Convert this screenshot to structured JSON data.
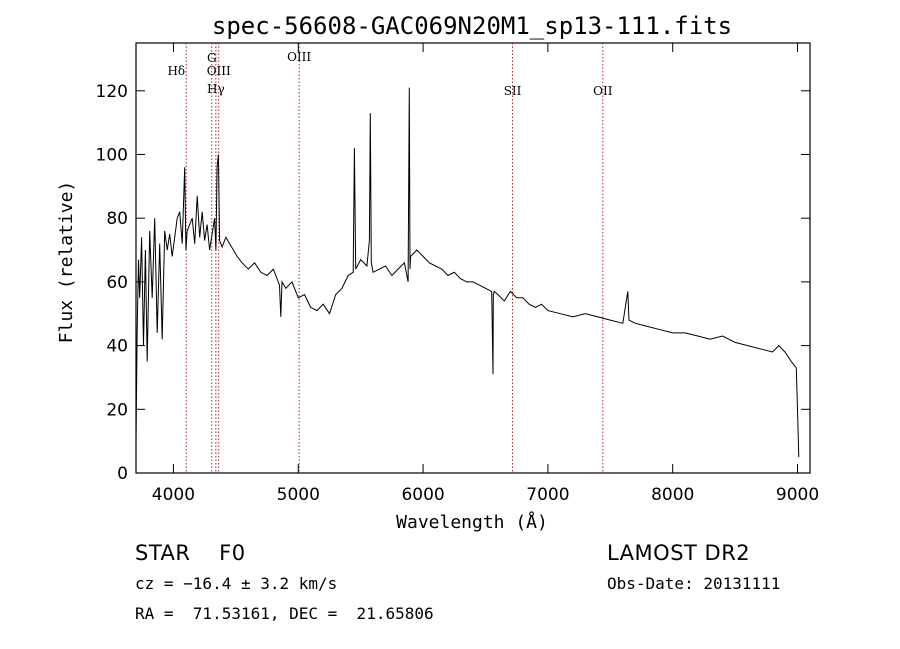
{
  "chart_data": {
    "type": "line",
    "title": "spec-56608-GAC069N20M1_sp13-111.fits",
    "xlabel": "Wavelength (Å)",
    "ylabel": "Flux (relative)",
    "xlim": [
      3700,
      9100
    ],
    "ylim": [
      0,
      135
    ],
    "xticks": [
      4000,
      5000,
      6000,
      7000,
      8000,
      9000
    ],
    "yticks": [
      0,
      20,
      40,
      60,
      80,
      100,
      120
    ],
    "grid": false,
    "series": [
      {
        "x": [
          3700,
          3710,
          3720,
          3730,
          3745,
          3760,
          3775,
          3790,
          3810,
          3830,
          3850,
          3870,
          3890,
          3910,
          3930,
          3950,
          3970,
          3990,
          4010,
          4030,
          4050,
          4070,
          4090,
          4100,
          4110,
          4130,
          4150,
          4170,
          4190,
          4210,
          4230,
          4250,
          4270,
          4290,
          4310,
          4330,
          4340,
          4350,
          4360,
          4370,
          4390,
          4420,
          4450,
          4480,
          4510,
          4550,
          4600,
          4650,
          4700,
          4750,
          4800,
          4850,
          4860,
          4870,
          4900,
          4950,
          5000,
          5050,
          5100,
          5150,
          5200,
          5250,
          5300,
          5350,
          5400,
          5440,
          5450,
          5460,
          5500,
          5550,
          5570,
          5577,
          5585,
          5600,
          5650,
          5700,
          5750,
          5800,
          5850,
          5880,
          5890,
          5895,
          5900,
          5950,
          6000,
          6050,
          6100,
          6150,
          6200,
          6250,
          6300,
          6350,
          6400,
          6450,
          6500,
          6550,
          6560,
          6563,
          6570,
          6600,
          6650,
          6700,
          6750,
          6800,
          6850,
          6900,
          6950,
          7000,
          7100,
          7200,
          7300,
          7400,
          7500,
          7600,
          7640,
          7650,
          7700,
          7800,
          7900,
          8000,
          8100,
          8200,
          8300,
          8400,
          8500,
          8600,
          8700,
          8800,
          8850,
          8900,
          8950,
          8990,
          9000,
          9010
        ],
        "y": [
          10,
          45,
          67,
          55,
          74,
          40,
          70,
          35,
          76,
          55,
          80,
          44,
          72,
          42,
          76,
          70,
          75,
          68,
          74,
          80,
          82,
          72,
          96,
          70,
          76,
          78,
          80,
          72,
          87,
          74,
          82,
          73,
          78,
          70,
          75,
          80,
          70,
          96,
          100,
          73,
          71,
          74,
          72,
          70,
          68,
          66,
          64,
          66,
          63,
          62,
          64,
          59,
          49,
          60,
          58,
          60,
          55,
          56,
          52,
          51,
          53,
          50,
          56,
          58,
          62,
          63,
          102,
          64,
          67,
          65,
          73,
          113,
          66,
          63,
          64,
          65,
          62,
          64,
          66,
          60,
          121,
          64,
          68,
          70,
          68,
          66,
          65,
          64,
          62,
          63,
          61,
          60,
          60,
          59,
          58,
          57,
          31,
          56,
          57,
          56,
          54,
          57,
          55,
          55,
          53,
          52,
          53,
          51,
          50,
          49,
          50,
          49,
          48,
          47,
          57,
          48,
          47,
          46,
          45,
          44,
          44,
          43,
          42,
          43,
          41,
          40,
          39,
          38,
          40,
          38,
          35,
          33,
          20,
          5
        ]
      }
    ],
    "annotations": [
      {
        "label": "Hδ",
        "x": 4102
      },
      {
        "label": "G",
        "x": 4307
      },
      {
        "label": "OIII",
        "x": 4363
      },
      {
        "label": "Hγ",
        "x": 4340
      },
      {
        "label": "OIII",
        "x": 5007
      },
      {
        "label": "SII",
        "x": 6717
      },
      {
        "label": "OII",
        "x": 7440
      }
    ]
  },
  "info": {
    "class_line": "STAR    F0",
    "survey": "LAMOST DR2",
    "cz": "cz = −16.4 ± 3.2 km/s",
    "obs_date": "Obs-Date: 20131111",
    "radec": "RA =  71.53161, DEC =  21.65806"
  }
}
